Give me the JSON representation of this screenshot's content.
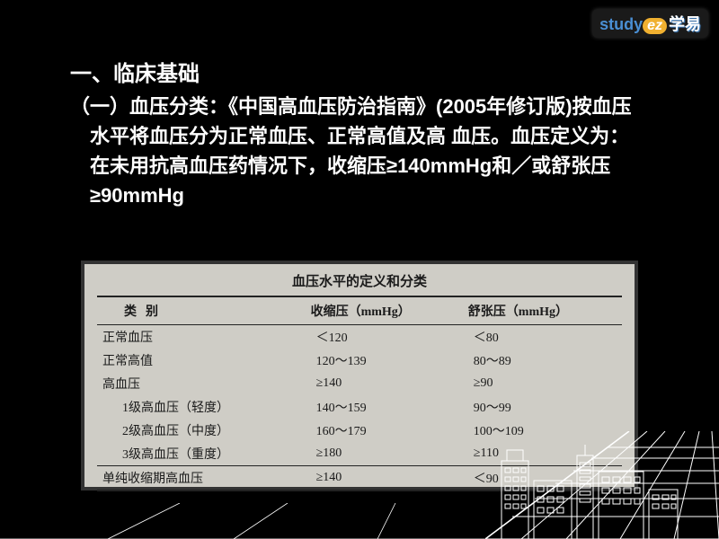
{
  "logo": {
    "study": "study",
    "ez": "ez",
    "cn": "学易"
  },
  "heading1": "一、临床基础",
  "body": "（一）血压分类：《中国高血压防治指南》(2005年修订版)按血压水平将血压分为正常血压、正常高值及高 血压。血压定义为：在未用抗高血压药情况下，收缩压≥140mmHg和／或舒张压≥90mmHg",
  "table": {
    "title": "血压水平的定义和分类",
    "columns": [
      "类别",
      "收缩压（mmHg）",
      "舒张压（mmHg）"
    ],
    "col_widths": [
      "40%",
      "30%",
      "30%"
    ],
    "rows": [
      {
        "cat": "正常血压",
        "c2": "＜120",
        "c3": "＜80",
        "indent": false
      },
      {
        "cat": "正常高值",
        "c2": "120～139",
        "c3": "80～89",
        "indent": false
      },
      {
        "cat": "高血压",
        "c2": "≥140",
        "c3": "≥90",
        "indent": false
      },
      {
        "cat": "1级高血压（轻度）",
        "c2": "140～159",
        "c3": "90～99",
        "indent": true
      },
      {
        "cat": "2级高血压（中度）",
        "c2": "160～179",
        "c3": "100～109",
        "indent": true
      },
      {
        "cat": "3级高血压（重度）",
        "c2": "≥180",
        "c3": "≥110",
        "indent": true
      },
      {
        "cat": "单纯收缩期高血压",
        "c2": "≥140",
        "c3": "＜90",
        "indent": false,
        "last": true
      }
    ],
    "background_color": "#cfcdc6",
    "border_color": "#222222",
    "text_color": "#1a1a1a",
    "font_family": "SimSun"
  },
  "colors": {
    "page_bg": "#000000",
    "text_white": "#ffffff",
    "logo_blue": "#4a8fd4",
    "logo_orange": "#f0b030"
  }
}
